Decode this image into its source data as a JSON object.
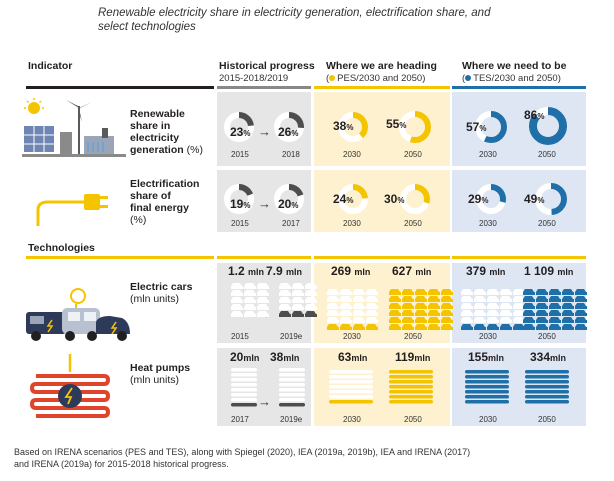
{
  "title": "Renewable electricity share in electricity generation, electrification share, and select technologies",
  "headers": {
    "indicator": "Indicator",
    "historical": "Historical progress",
    "historical_sub": "2015-2018/2019",
    "heading": "Where we are heading",
    "heading_sub": "PES/2030 and 2050",
    "need": "Where we need to be",
    "need_sub": "TES/2030 and 2050",
    "technologies": "Technologies"
  },
  "colors": {
    "yellow": "#f5c400",
    "blue": "#1f6fa8",
    "dark": "#4d4d4d",
    "gray_panel": "#e6e6e6",
    "yellow_panel": "#fdf1cf",
    "blue_panel": "#dde6f2"
  },
  "rows": {
    "renewable": {
      "label": "Renewable share in electricity generation (%)",
      "l1": "Renewable",
      "l2": "share in",
      "l3": "electricity",
      "l4": "generation",
      "l4b": "(%)",
      "hist": [
        {
          "v": "23",
          "u": "%",
          "year": "2015",
          "frac": 0.23
        },
        {
          "v": "26",
          "u": "%",
          "year": "2018",
          "frac": 0.26
        }
      ],
      "pes": [
        {
          "v": "38",
          "u": "%",
          "year": "2030",
          "frac": 0.38
        },
        {
          "v": "55",
          "u": "%",
          "year": "2050",
          "frac": 0.55
        }
      ],
      "tes": [
        {
          "v": "57",
          "u": "%",
          "year": "2030",
          "frac": 0.57
        },
        {
          "v": "86",
          "u": "%",
          "year": "2050",
          "frac": 0.86
        }
      ]
    },
    "electrification": {
      "l1": "Electrification",
      "l2": "share of",
      "l3": "final energy",
      "l4": "(%)",
      "hist": [
        {
          "v": "19",
          "u": "%",
          "year": "2015",
          "frac": 0.19
        },
        {
          "v": "20",
          "u": "%",
          "year": "2017",
          "frac": 0.2
        }
      ],
      "pes": [
        {
          "v": "24",
          "u": "%",
          "year": "2030",
          "frac": 0.24
        },
        {
          "v": "30",
          "u": "%",
          "year": "2050",
          "frac": 0.3
        }
      ],
      "tes": [
        {
          "v": "29",
          "u": "%",
          "year": "2030",
          "frac": 0.29
        },
        {
          "v": "49",
          "u": "%",
          "year": "2050",
          "frac": 0.49
        }
      ]
    },
    "cars": {
      "l1": "Electric cars",
      "l2": "(mln units)",
      "hist": [
        {
          "v": "1.2",
          "u": "mln",
          "year": "2015"
        },
        {
          "v": "7.9",
          "u": "mln",
          "year": "2019e"
        }
      ],
      "pes": [
        {
          "v": "269",
          "u": "mln",
          "year": "2030"
        },
        {
          "v": "627",
          "u": "mln",
          "year": "2050"
        }
      ],
      "tes": [
        {
          "v": "379",
          "u": "mln",
          "year": "2030"
        },
        {
          "v": "1 109",
          "u": "mln",
          "year": "2050"
        }
      ]
    },
    "heatpumps": {
      "l1": "Heat pumps",
      "l2": "(mln units)",
      "hist": [
        {
          "v": "20",
          "u": "mln",
          "year": "2017"
        },
        {
          "v": "38",
          "u": "mln",
          "year": "2019e"
        }
      ],
      "pes": [
        {
          "v": "63",
          "u": "mln",
          "year": "2030"
        },
        {
          "v": "119",
          "u": "mln",
          "year": "2050"
        }
      ],
      "tes": [
        {
          "v": "155",
          "u": "mln",
          "year": "2030"
        },
        {
          "v": "334",
          "u": "mln",
          "year": "2050"
        }
      ]
    }
  },
  "note": "Based on IRENA scenarios (PES and TES), along with Spiegel (2020), IEA (2019a, 2019b), IEA and IRENA (2017) and IRENA (2019a) for 2015-2018 historical progress.",
  "icons": [
    "renewable-energy-icon",
    "power-plug-icon",
    "electric-cars-icon",
    "heat-pump-icon",
    "arrow-right-icon"
  ]
}
